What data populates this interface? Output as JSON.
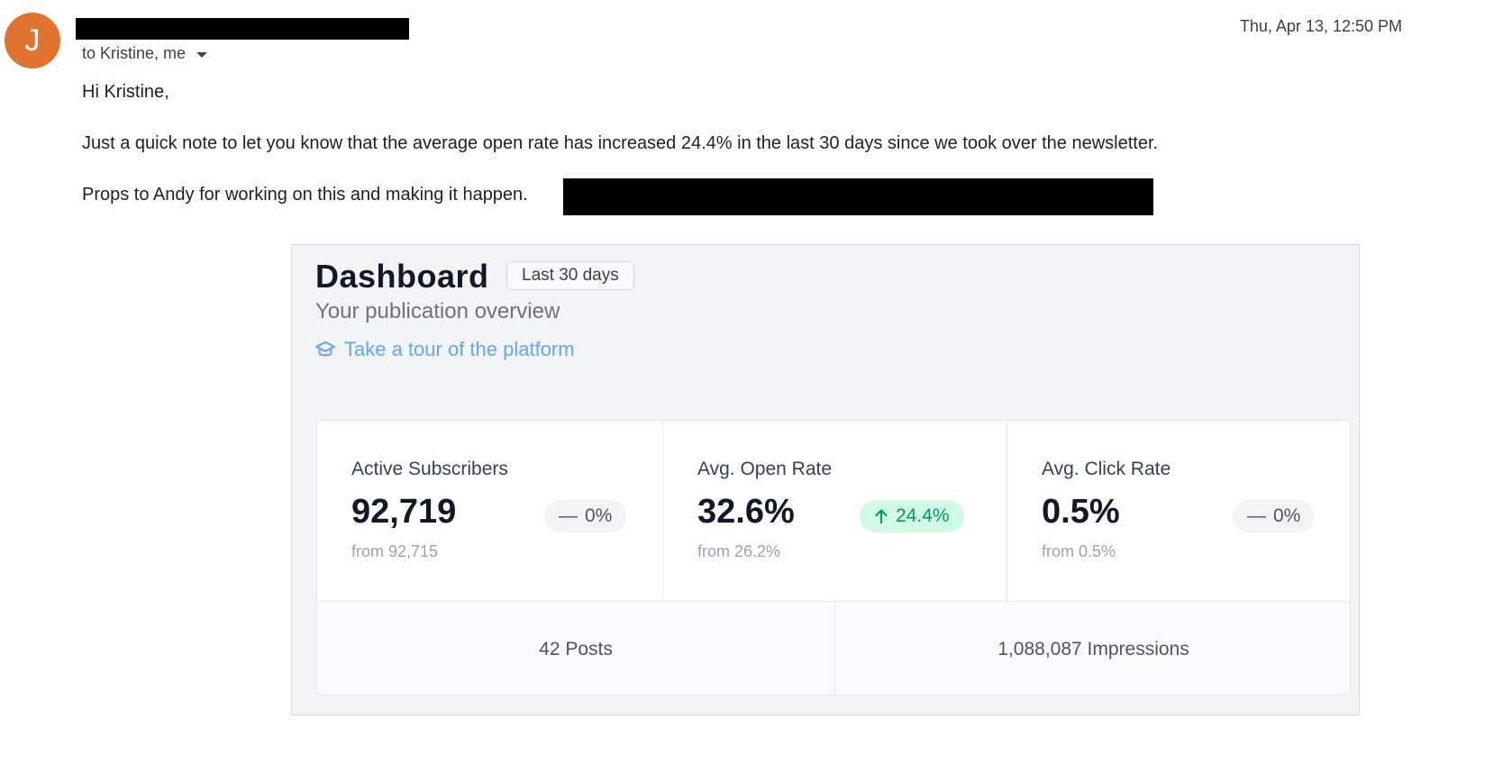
{
  "email": {
    "avatar_initial": "J",
    "recipients": "to Kristine, me",
    "timestamp": "Thu, Apr 13, 12:50 PM",
    "greeting": "Hi Kristine,",
    "paragraph1": "Just a quick note to let you know that the average open rate has increased 24.4% in the last 30 days since we took over the newsletter.",
    "paragraph2": "Props to Andy for working on this and making it happen. "
  },
  "dashboard": {
    "title": "Dashboard",
    "period": "Last 30 days",
    "subtitle": "Your publication overview",
    "tour_link": "Take a tour of the platform",
    "stats": [
      {
        "label": "Active Subscribers",
        "value": "92,719",
        "delta": "0%",
        "delta_type": "neutral",
        "from": "from 92,715"
      },
      {
        "label": "Avg. Open Rate",
        "value": "32.6%",
        "delta": "24.4%",
        "delta_type": "up",
        "from": "from 26.2%"
      },
      {
        "label": "Avg. Click Rate",
        "value": "0.5%",
        "delta": "0%",
        "delta_type": "neutral",
        "from": "from 0.5%"
      }
    ],
    "bottom": {
      "posts": "42 Posts",
      "impressions": "1,088,087 Impressions"
    }
  },
  "colors": {
    "avatar": "#e0732f",
    "link": "#60a5fa",
    "delta_up_bg": "#d1fae5",
    "delta_up_text": "#059669"
  }
}
